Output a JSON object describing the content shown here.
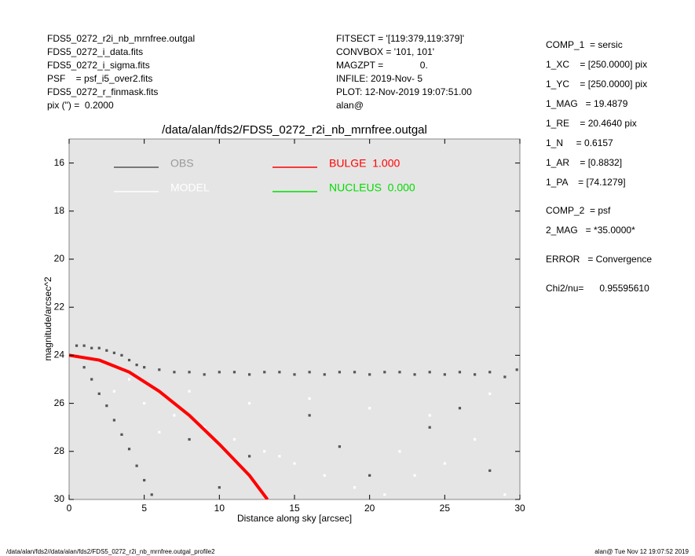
{
  "header": {
    "left": [
      "FDS5_0272_r2i_nb_mrnfree.outgal",
      "FDS5_0272_i_data.fits",
      "FDS5_0272_i_sigma.fits",
      "PSF    = psf_i5_over2.fits",
      "FDS5_0272_r_finmask.fits",
      "pix (\") =  0.2000"
    ],
    "middle": [
      "FITSECT = '[119:379,119:379]'",
      "CONVBOX = '101, 101'",
      "MAGZPT =              0.",
      "INFILE: 2019-Nov- 5",
      "PLOT: 12-Nov-2019 19:07:51.00",
      "alan@"
    ],
    "right": [
      "COMP_1  = sersic",
      "1_XC    = [250.0000] pix",
      "1_YC    = [250.0000] pix",
      "1_MAG   = 19.4879",
      "1_RE    = 20.4640 pix",
      "1_N     = 0.6157",
      "1_AR    = [0.8832]",
      "1_PA    = [74.1279]",
      "COMP_2  = psf",
      "2_MAG   = *35.0000*",
      "ERROR   = Convergence",
      "Chi2/nu=      0.95595610"
    ]
  },
  "chart_data": {
    "type": "scatter",
    "title": "/data/alan/fds2/FDS5_0272_r2i_nb_mrnfree.outgal",
    "x_label": "Distance along sky [arcsec]",
    "y_label": "magnitude/arcsec^2",
    "xlim": [
      0,
      30
    ],
    "xticks": [
      0,
      5,
      10,
      15,
      20,
      25,
      30
    ],
    "ylim": [
      30,
      15
    ],
    "yticks": [
      16,
      18,
      20,
      22,
      24,
      26,
      28,
      30
    ],
    "series": [
      {
        "name": "OBS",
        "color": "#555555",
        "mode": "points",
        "x": [
          0.5,
          1,
          1.5,
          2,
          2.5,
          3,
          3.5,
          4,
          4.5,
          5,
          6,
          7,
          8,
          9,
          10,
          11,
          12,
          13,
          14,
          15,
          16,
          17,
          18,
          19,
          20,
          21,
          22,
          23,
          24,
          25,
          26,
          27,
          28,
          29,
          29.8,
          1,
          1.5,
          2,
          2.5,
          3,
          3.5,
          4,
          4.5,
          5,
          5.5,
          8,
          12,
          16,
          20,
          24,
          28,
          10,
          18,
          26
        ],
        "values": [
          23.6,
          23.6,
          23.7,
          23.7,
          23.8,
          23.9,
          24.0,
          24.2,
          24.4,
          24.5,
          24.6,
          24.7,
          24.7,
          24.8,
          24.7,
          24.7,
          24.8,
          24.7,
          24.7,
          24.8,
          24.7,
          24.8,
          24.7,
          24.7,
          24.8,
          24.7,
          24.7,
          24.8,
          24.7,
          24.8,
          24.7,
          24.8,
          24.7,
          24.9,
          24.6,
          24.5,
          25.0,
          25.6,
          26.1,
          26.7,
          27.3,
          27.9,
          28.6,
          29.2,
          29.8,
          27.5,
          28.2,
          26.5,
          29.0,
          27.0,
          28.8,
          29.5,
          27.8,
          26.2
        ]
      },
      {
        "name": "MODEL",
        "color": "#ffffff",
        "mode": "points",
        "x": [
          3,
          5,
          7,
          9,
          11,
          13,
          15,
          17,
          19,
          21,
          23,
          25,
          27,
          29,
          4,
          8,
          12,
          16,
          20,
          24,
          28,
          6,
          14,
          22,
          30
        ],
        "values": [
          25.5,
          26,
          26.5,
          27,
          27.5,
          28,
          28.5,
          29,
          29.5,
          29.8,
          29,
          28.5,
          27.5,
          29.8,
          25,
          25.5,
          26,
          25.8,
          26.2,
          26.5,
          25.6,
          27.2,
          28.2,
          28,
          29.9
        ]
      },
      {
        "name": "BULGE  1.000",
        "color": "#ff0000",
        "mode": "line",
        "x": [
          0,
          2,
          4,
          6,
          8,
          10,
          12,
          13.2
        ],
        "values": [
          24.0,
          24.2,
          24.7,
          25.5,
          26.5,
          27.7,
          29.0,
          30.0
        ]
      },
      {
        "name": "NUCLEUS  0.000",
        "color": "#00dd00",
        "mode": "line",
        "x": [],
        "values": []
      }
    ]
  },
  "footer": {
    "left": "/data/alan/fds2//data/alan/fds2/FDS5_0272_r2i_nb_mrnfree.outgal_profile2",
    "right": "alan@  Tue Nov 12 19:07:52 2019"
  }
}
